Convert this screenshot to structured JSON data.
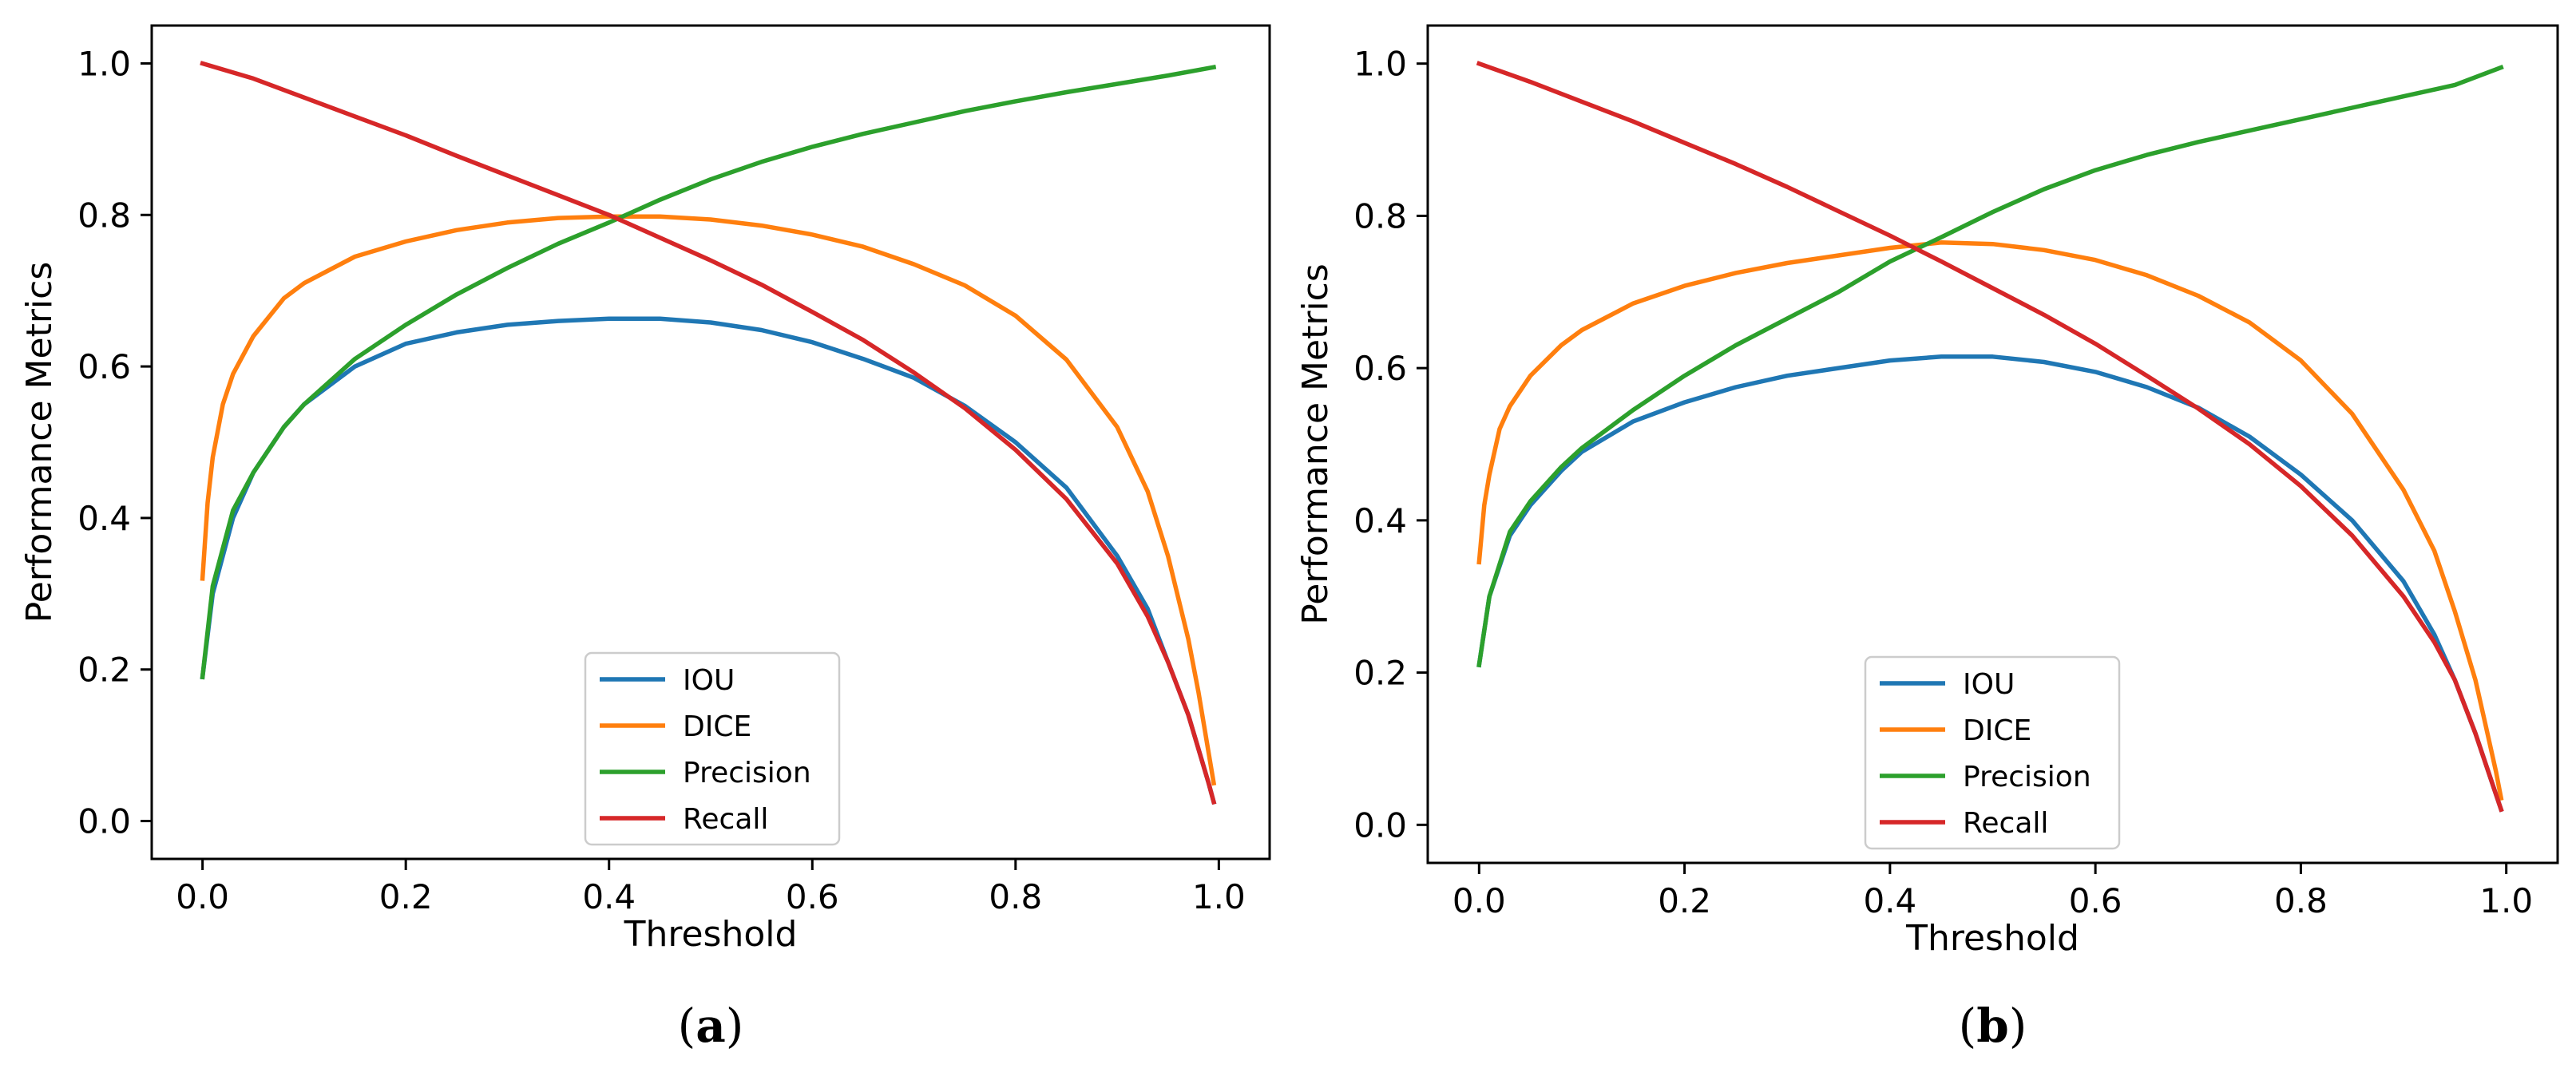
{
  "chart_data": [
    {
      "type": "line",
      "panel_label_open": "(",
      "panel_label_letter": "a",
      "panel_label_close": ")",
      "xlabel": "Threshold",
      "ylabel": "Performance Metrics",
      "xlim": [
        -0.05,
        1.05
      ],
      "ylim": [
        -0.05,
        1.05
      ],
      "xticks": [
        0.0,
        0.2,
        0.4,
        0.6,
        0.8,
        1.0
      ],
      "xtick_labels": [
        "0.0",
        "0.2",
        "0.4",
        "0.6",
        "0.8",
        "1.0"
      ],
      "yticks": [
        0.0,
        0.2,
        0.4,
        0.6,
        0.8,
        1.0
      ],
      "ytick_labels": [
        "0.0",
        "0.2",
        "0.4",
        "0.6",
        "0.8",
        "1.0"
      ],
      "grid": false,
      "legend_position": "bottom-center",
      "series": [
        {
          "name": "IOU",
          "color": "#1f77b4",
          "x": [
            0.0,
            0.01,
            0.03,
            0.05,
            0.08,
            0.1,
            0.15,
            0.2,
            0.25,
            0.3,
            0.35,
            0.4,
            0.45,
            0.5,
            0.55,
            0.6,
            0.65,
            0.7,
            0.75,
            0.8,
            0.85,
            0.9,
            0.93,
            0.95,
            0.97,
            0.99,
            0.995
          ],
          "y": [
            0.19,
            0.3,
            0.4,
            0.46,
            0.52,
            0.55,
            0.6,
            0.63,
            0.645,
            0.655,
            0.66,
            0.663,
            0.663,
            0.658,
            0.648,
            0.632,
            0.61,
            0.585,
            0.548,
            0.5,
            0.44,
            0.35,
            0.28,
            0.21,
            0.14,
            0.05,
            0.025
          ]
        },
        {
          "name": "DICE",
          "color": "#ff7f0e",
          "x": [
            0.0,
            0.005,
            0.01,
            0.02,
            0.03,
            0.05,
            0.08,
            0.1,
            0.15,
            0.2,
            0.25,
            0.3,
            0.35,
            0.4,
            0.45,
            0.5,
            0.55,
            0.6,
            0.65,
            0.7,
            0.75,
            0.8,
            0.85,
            0.9,
            0.93,
            0.95,
            0.97,
            0.98,
            0.99,
            0.995
          ],
          "y": [
            0.32,
            0.42,
            0.48,
            0.55,
            0.59,
            0.64,
            0.69,
            0.71,
            0.745,
            0.765,
            0.78,
            0.79,
            0.796,
            0.798,
            0.798,
            0.794,
            0.786,
            0.774,
            0.758,
            0.735,
            0.707,
            0.667,
            0.609,
            0.52,
            0.435,
            0.35,
            0.24,
            0.17,
            0.09,
            0.05
          ]
        },
        {
          "name": "Precision",
          "color": "#2ca02c",
          "x": [
            0.0,
            0.01,
            0.03,
            0.05,
            0.08,
            0.1,
            0.15,
            0.2,
            0.25,
            0.3,
            0.35,
            0.4,
            0.45,
            0.5,
            0.55,
            0.6,
            0.65,
            0.7,
            0.75,
            0.8,
            0.85,
            0.9,
            0.95,
            0.995
          ],
          "y": [
            0.19,
            0.31,
            0.41,
            0.46,
            0.52,
            0.55,
            0.61,
            0.655,
            0.695,
            0.73,
            0.762,
            0.79,
            0.82,
            0.847,
            0.87,
            0.89,
            0.907,
            0.922,
            0.937,
            0.95,
            0.962,
            0.973,
            0.984,
            0.995
          ]
        },
        {
          "name": "Recall",
          "color": "#d62728",
          "x": [
            0.0,
            0.05,
            0.1,
            0.15,
            0.2,
            0.25,
            0.3,
            0.35,
            0.4,
            0.45,
            0.5,
            0.55,
            0.6,
            0.65,
            0.7,
            0.75,
            0.8,
            0.85,
            0.9,
            0.93,
            0.95,
            0.97,
            0.99,
            0.995
          ],
          "y": [
            1.0,
            0.98,
            0.955,
            0.93,
            0.905,
            0.878,
            0.852,
            0.826,
            0.8,
            0.77,
            0.74,
            0.708,
            0.672,
            0.635,
            0.592,
            0.545,
            0.49,
            0.425,
            0.34,
            0.27,
            0.21,
            0.14,
            0.05,
            0.025
          ]
        }
      ],
      "legend": [
        "IOU",
        "DICE",
        "Precision",
        "Recall"
      ]
    },
    {
      "type": "line",
      "panel_label_open": "(",
      "panel_label_letter": "b",
      "panel_label_close": ")",
      "xlabel": "Threshold",
      "ylabel": "Performance Metrics",
      "xlim": [
        -0.05,
        1.05
      ],
      "ylim": [
        -0.05,
        1.05
      ],
      "xticks": [
        0.0,
        0.2,
        0.4,
        0.6,
        0.8,
        1.0
      ],
      "xtick_labels": [
        "0.0",
        "0.2",
        "0.4",
        "0.6",
        "0.8",
        "1.0"
      ],
      "yticks": [
        0.0,
        0.2,
        0.4,
        0.6,
        0.8,
        1.0
      ],
      "ytick_labels": [
        "0.0",
        "0.2",
        "0.4",
        "0.6",
        "0.8",
        "1.0"
      ],
      "grid": false,
      "legend_position": "bottom-center",
      "series": [
        {
          "name": "IOU",
          "color": "#1f77b4",
          "x": [
            0.0,
            0.01,
            0.03,
            0.05,
            0.08,
            0.1,
            0.15,
            0.2,
            0.25,
            0.3,
            0.35,
            0.4,
            0.45,
            0.5,
            0.55,
            0.6,
            0.65,
            0.7,
            0.75,
            0.8,
            0.85,
            0.9,
            0.93,
            0.95,
            0.97,
            0.99,
            0.995
          ],
          "y": [
            0.21,
            0.3,
            0.38,
            0.42,
            0.465,
            0.49,
            0.53,
            0.555,
            0.575,
            0.59,
            0.6,
            0.61,
            0.615,
            0.615,
            0.608,
            0.595,
            0.575,
            0.548,
            0.51,
            0.46,
            0.4,
            0.32,
            0.25,
            0.19,
            0.12,
            0.04,
            0.02
          ]
        },
        {
          "name": "DICE",
          "color": "#ff7f0e",
          "x": [
            0.0,
            0.005,
            0.01,
            0.02,
            0.03,
            0.05,
            0.08,
            0.1,
            0.15,
            0.2,
            0.25,
            0.3,
            0.35,
            0.4,
            0.45,
            0.5,
            0.55,
            0.6,
            0.65,
            0.7,
            0.75,
            0.8,
            0.85,
            0.9,
            0.93,
            0.95,
            0.97,
            0.98,
            0.99,
            0.995
          ],
          "y": [
            0.345,
            0.42,
            0.46,
            0.52,
            0.55,
            0.59,
            0.63,
            0.65,
            0.685,
            0.708,
            0.725,
            0.738,
            0.748,
            0.758,
            0.765,
            0.763,
            0.755,
            0.742,
            0.722,
            0.695,
            0.66,
            0.61,
            0.54,
            0.44,
            0.36,
            0.28,
            0.19,
            0.13,
            0.07,
            0.035
          ]
        },
        {
          "name": "Precision",
          "color": "#2ca02c",
          "x": [
            0.0,
            0.01,
            0.03,
            0.05,
            0.08,
            0.1,
            0.15,
            0.2,
            0.25,
            0.3,
            0.35,
            0.4,
            0.45,
            0.5,
            0.55,
            0.6,
            0.65,
            0.7,
            0.75,
            0.8,
            0.85,
            0.9,
            0.95,
            0.995
          ],
          "y": [
            0.21,
            0.3,
            0.385,
            0.425,
            0.47,
            0.495,
            0.545,
            0.59,
            0.63,
            0.665,
            0.7,
            0.74,
            0.772,
            0.805,
            0.835,
            0.86,
            0.88,
            0.897,
            0.912,
            0.927,
            0.942,
            0.957,
            0.972,
            0.995
          ]
        },
        {
          "name": "Recall",
          "color": "#d62728",
          "x": [
            0.0,
            0.05,
            0.1,
            0.15,
            0.2,
            0.25,
            0.3,
            0.35,
            0.4,
            0.45,
            0.5,
            0.55,
            0.6,
            0.65,
            0.7,
            0.75,
            0.8,
            0.85,
            0.9,
            0.93,
            0.95,
            0.97,
            0.99,
            0.995
          ],
          "y": [
            1.0,
            0.976,
            0.95,
            0.924,
            0.896,
            0.868,
            0.838,
            0.806,
            0.774,
            0.74,
            0.705,
            0.67,
            0.632,
            0.59,
            0.547,
            0.5,
            0.445,
            0.38,
            0.3,
            0.24,
            0.19,
            0.12,
            0.04,
            0.02
          ]
        }
      ],
      "legend": [
        "IOU",
        "DICE",
        "Precision",
        "Recall"
      ]
    }
  ]
}
